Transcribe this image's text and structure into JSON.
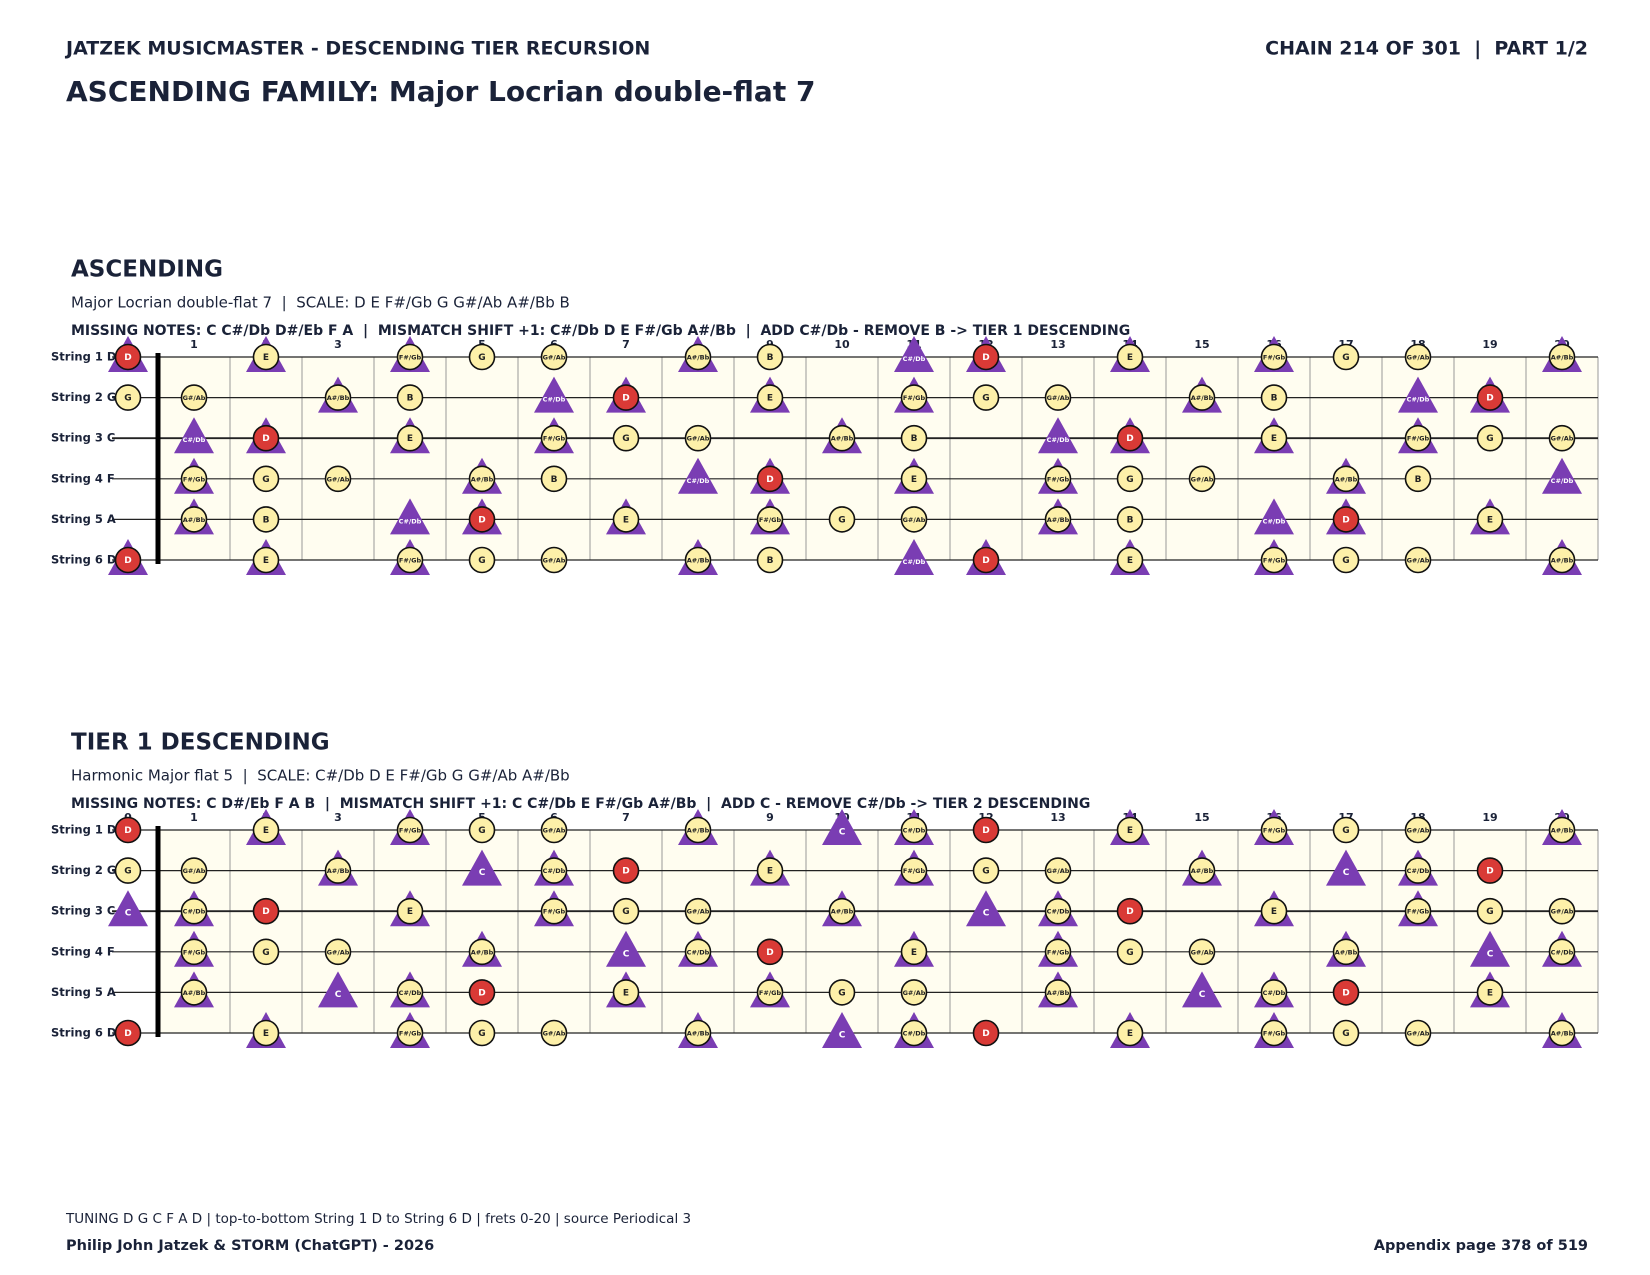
{
  "header": {
    "left": "JATZEK MUSICMASTER - DESCENDING TIER RECURSION",
    "right": "CHAIN 214 OF 301  |  PART 1/2",
    "title": "ASCENDING FAMILY: Major Locrian double-flat 7"
  },
  "chromatic": [
    "C",
    "C#/Db",
    "D",
    "D#/Eb",
    "E",
    "F",
    "F#/Gb",
    "G",
    "G#/Ab",
    "A",
    "A#/Bb",
    "B"
  ],
  "frets": [
    0,
    1,
    2,
    3,
    4,
    5,
    6,
    7,
    8,
    9,
    10,
    11,
    12,
    13,
    14,
    15,
    16,
    17,
    18,
    19,
    20
  ],
  "strings": [
    {
      "label": "String 1 D",
      "open": "D"
    },
    {
      "label": "String 2 G",
      "open": "G"
    },
    {
      "label": "String 3 C",
      "open": "C"
    },
    {
      "label": "String 4 F",
      "open": "F"
    },
    {
      "label": "String 5 A",
      "open": "A"
    },
    {
      "label": "String 6 D",
      "open": "D"
    }
  ],
  "sections": [
    {
      "heading": "ASCENDING",
      "subtitle": "Major Locrian double-flat 7  |  SCALE: D E F#/Gb G G#/Ab A#/Bb B",
      "missing": "MISSING NOTES: C C#/Db D#/Eb F A  |  MISMATCH SHIFT +1: C#/Db D E F#/Gb A#/Bb  |  ADD C#/Db - REMOVE B -> TIER 1 DESCENDING",
      "scale": [
        "D",
        "E",
        "F#/Gb",
        "G",
        "G#/Ab",
        "A#/Bb",
        "B"
      ],
      "shift": [
        "C#/Db",
        "D",
        "E",
        "F#/Gb",
        "A#/Bb"
      ],
      "root": "D"
    },
    {
      "heading": "TIER 1 DESCENDING",
      "subtitle": "Harmonic Major flat 5  |  SCALE: C#/Db D E F#/Gb G G#/Ab A#/Bb",
      "missing": "MISSING NOTES: C D#/Eb F A B  |  MISMATCH SHIFT +1: C C#/Db E F#/Gb A#/Bb  |  ADD C - REMOVE C#/Db -> TIER 2 DESCENDING",
      "scale": [
        "C#/Db",
        "D",
        "E",
        "F#/Gb",
        "G",
        "G#/Ab",
        "A#/Bb"
      ],
      "shift": [
        "C",
        "C#/Db",
        "E",
        "F#/Gb",
        "A#/Bb"
      ],
      "root": "D"
    }
  ],
  "footer": {
    "note": "TUNING D G C F A D | top-to-bottom String 1 D to String 6 D | frets 0-20 | source Periodical 3",
    "left": "Philip John Jatzek & STORM (ChatGPT) - 2026",
    "right": "Appendix page 378 of 519"
  }
}
